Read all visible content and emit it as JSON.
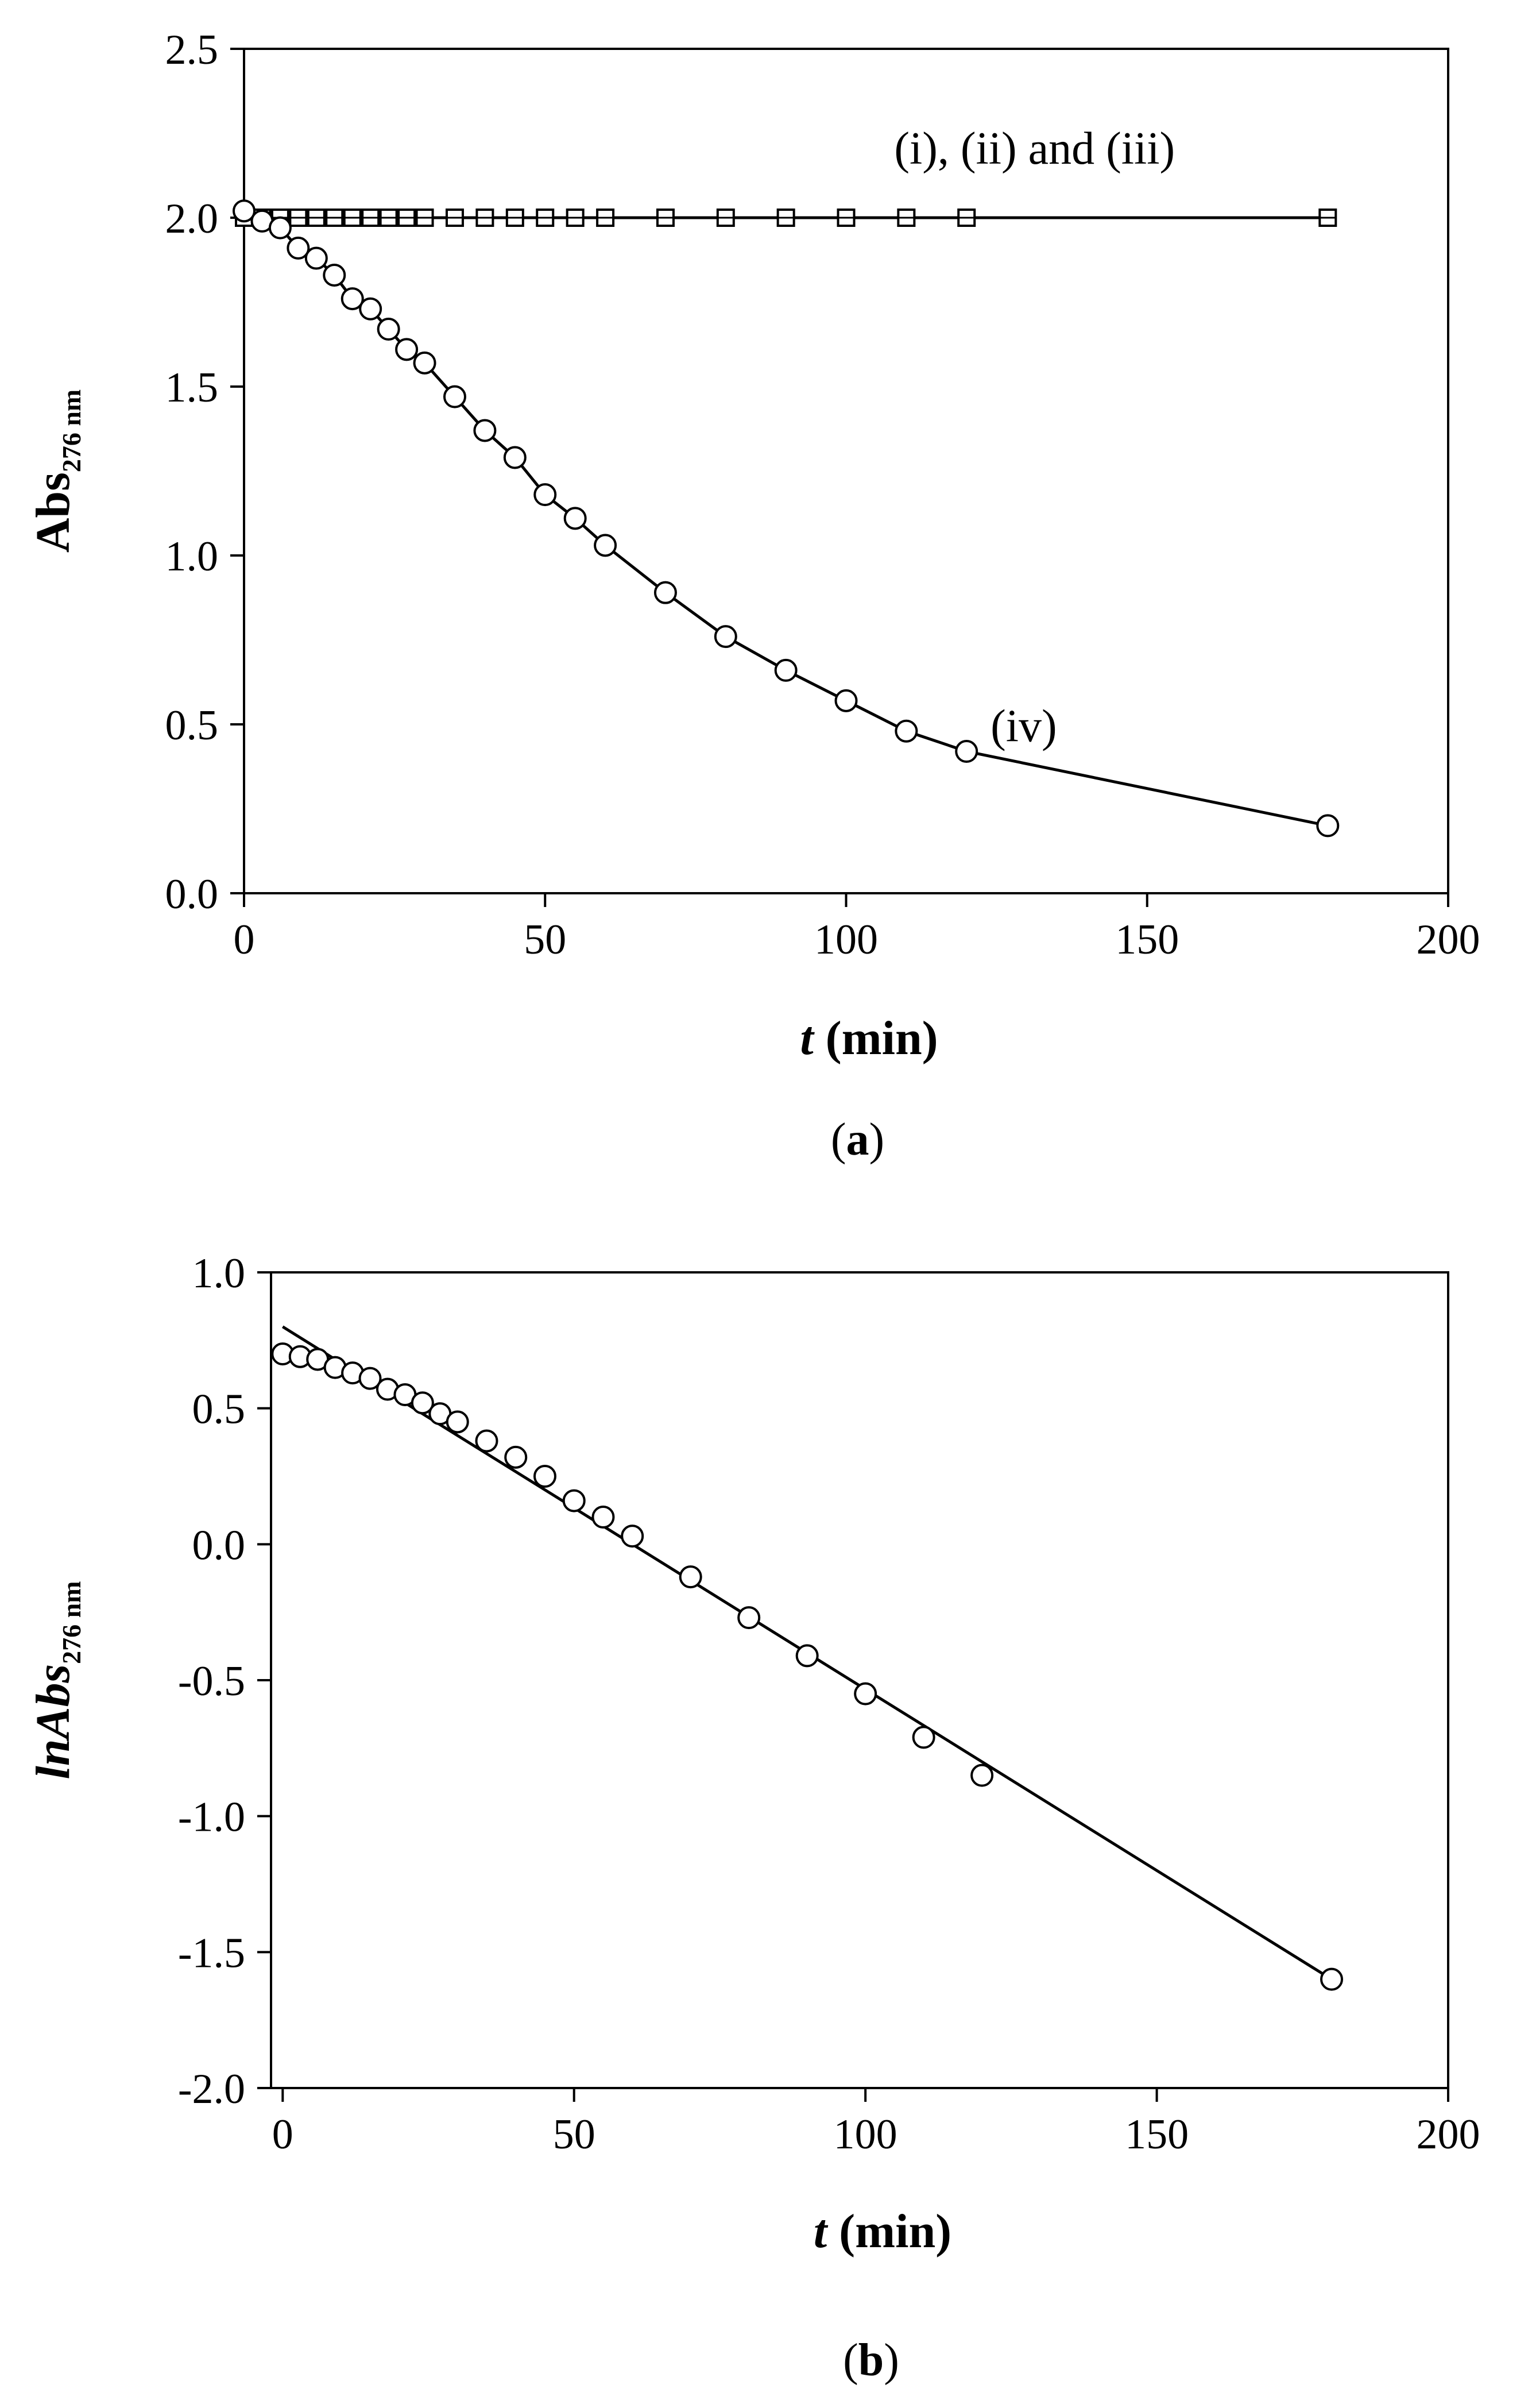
{
  "chart_data": [
    {
      "type": "line",
      "panel_label": "a",
      "title": "",
      "xlabel_italic": "t",
      "xlabel_rest": " (min)",
      "ylabel_main": "Abs",
      "ylabel_sub": "276 nm",
      "xlim": [
        0,
        200
      ],
      "ylim": [
        0.0,
        2.5
      ],
      "xticks": [
        0,
        50,
        100,
        150,
        200
      ],
      "yticks": [
        0.0,
        0.5,
        1.0,
        1.5,
        2.0,
        2.5
      ],
      "xtick_labels": [
        "0",
        "50",
        "100",
        "150",
        "200"
      ],
      "ytick_labels": [
        "0.0",
        "0.5",
        "1.0",
        "1.5",
        "2.0",
        "2.5"
      ],
      "grid": false,
      "series": [
        {
          "name": "(i), (ii) and (iii)",
          "marker": "square",
          "x": [
            0,
            3,
            6,
            9,
            12,
            15,
            18,
            21,
            24,
            27,
            30,
            35,
            40,
            45,
            50,
            55,
            60,
            70,
            80,
            90,
            100,
            110,
            120,
            180
          ],
          "y": [
            2.0,
            2.0,
            2.0,
            2.0,
            2.0,
            2.0,
            2.0,
            2.0,
            2.0,
            2.0,
            2.0,
            2.0,
            2.0,
            2.0,
            2.0,
            2.0,
            2.0,
            2.0,
            2.0,
            2.0,
            2.0,
            2.0,
            2.0,
            2.0
          ]
        },
        {
          "name": "(iv)",
          "marker": "circle",
          "x": [
            0,
            3,
            6,
            9,
            12,
            15,
            18,
            21,
            24,
            27,
            30,
            35,
            40,
            45,
            50,
            55,
            60,
            70,
            80,
            90,
            100,
            110,
            120,
            180
          ],
          "y": [
            2.02,
            1.99,
            1.97,
            1.91,
            1.88,
            1.83,
            1.76,
            1.73,
            1.67,
            1.61,
            1.57,
            1.47,
            1.37,
            1.29,
            1.18,
            1.11,
            1.03,
            0.89,
            0.76,
            0.66,
            0.57,
            0.48,
            0.42,
            0.2
          ]
        }
      ],
      "annotations": [
        {
          "text": "(i), (ii) and (iii)",
          "x": 108,
          "y": 2.16
        },
        {
          "text": "(iv)",
          "x": 124,
          "y": 0.45
        }
      ]
    },
    {
      "type": "scatter",
      "panel_label": "b",
      "title": "",
      "xlabel_italic": "t",
      "xlabel_rest": " (min)",
      "ylabel_main": "lnAbs",
      "ylabel_sub": "276 nm",
      "xlim": [
        -2,
        200
      ],
      "ylim": [
        -2.0,
        1.0
      ],
      "xticks": [
        0,
        50,
        100,
        150,
        200
      ],
      "yticks": [
        -2.0,
        -1.5,
        -1.0,
        -0.5,
        0.0,
        0.5,
        1.0
      ],
      "xtick_labels": [
        "0",
        "50",
        "100",
        "150",
        "200"
      ],
      "ytick_labels": [
        "-2.0",
        "-1.5",
        "-1.0",
        "-0.5",
        "0.0",
        "0.5",
        "1.0"
      ],
      "grid": false,
      "series": [
        {
          "name": "lnAbs",
          "marker": "circle",
          "x": [
            0,
            3,
            6,
            9,
            12,
            15,
            18,
            21,
            24,
            27,
            30,
            35,
            40,
            45,
            50,
            55,
            60,
            70,
            80,
            90,
            100,
            110,
            120,
            180
          ],
          "y": [
            0.7,
            0.69,
            0.68,
            0.65,
            0.63,
            0.61,
            0.57,
            0.55,
            0.52,
            0.48,
            0.45,
            0.38,
            0.32,
            0.25,
            0.16,
            0.1,
            0.03,
            -0.12,
            -0.27,
            -0.41,
            -0.55,
            -0.71,
            -0.85,
            -1.6
          ]
        }
      ],
      "fit_line": {
        "x": [
          0,
          180
        ],
        "y": [
          0.8,
          -1.6
        ]
      }
    }
  ]
}
